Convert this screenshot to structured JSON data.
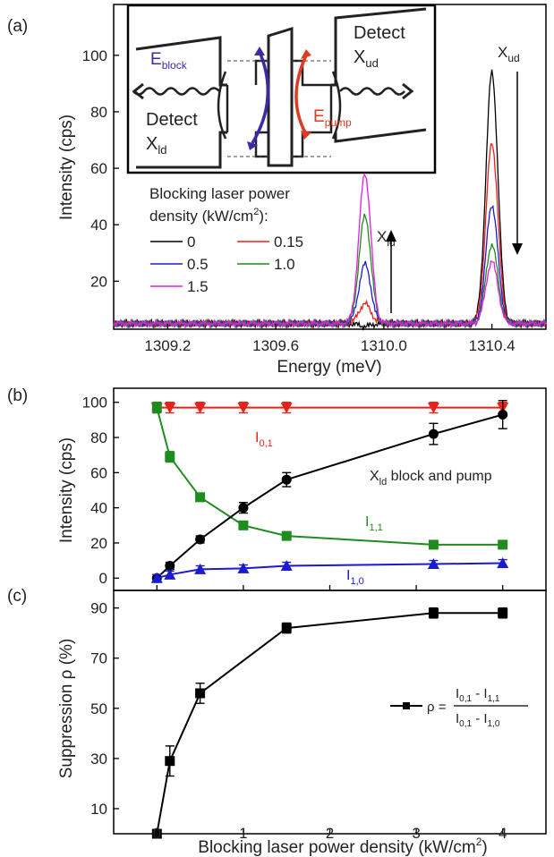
{
  "chart_data": [
    {
      "panel": "(a)",
      "type": "line",
      "xlabel": "Energy (meV)",
      "ylabel": "Intensity (cps)",
      "xlim": [
        1309.0,
        1310.6
      ],
      "ylim": [
        3,
        118
      ],
      "xticks": [
        {
          "value": 1309.2,
          "label": "1309.2"
        },
        {
          "value": 1309.6,
          "label": "1309.6"
        },
        {
          "value": 1310.0,
          "label": "1310.0"
        },
        {
          "value": 1310.4,
          "label": "1310.4"
        }
      ],
      "yticks": [
        20,
        40,
        60,
        80,
        100
      ],
      "legend_title_line1": "Blocking laser power",
      "legend_title_line2": "density (kW/cm",
      "legend_title_sup": "2",
      "legend_title_end": "):",
      "series": [
        {
          "name": "0",
          "color": "#000000",
          "peak_xld": 4,
          "peak_xud": 94
        },
        {
          "name": "0.15",
          "color": "#e8211b",
          "peak_xld": 12,
          "peak_xud": 69
        },
        {
          "name": "0.5",
          "color": "#1a1ad0",
          "peak_xld": 26,
          "peak_xud": 47
        },
        {
          "name": "1.0",
          "color": "#1e8c1e",
          "peak_xld": 43,
          "peak_xud": 33
        },
        {
          "name": "1.5",
          "color": "#e21ce2",
          "peak_xld": 58,
          "peak_xud": 27
        }
      ],
      "peak_positions": {
        "xld": 1309.93,
        "xud": 1310.4
      },
      "baseline": 5,
      "annotations": {
        "xud_main": "X",
        "xud_sub": "ud",
        "xld_main": "X",
        "xld_sub": "ld"
      },
      "inset": {
        "detect_right_line1": "Detect",
        "detect_right_main": "X",
        "detect_right_sub": "ud",
        "detect_left_line1": "Detect",
        "detect_left_main": "X",
        "detect_left_sub": "ld",
        "eblock_main": "E",
        "eblock_sub": "block",
        "epump_main": "E",
        "epump_sub": "pump",
        "eblock_color": "#3b2aa8",
        "epump_color": "#e03a22"
      }
    },
    {
      "panel": "(b)",
      "type": "line",
      "xlabel": "",
      "ylabel": "Intensity (cps)",
      "xlim": [
        -0.5,
        4.5
      ],
      "ylim": [
        -7,
        108
      ],
      "yticks": [
        0,
        20,
        40,
        60,
        80,
        100
      ],
      "series": [
        {
          "name": "I_0,1",
          "color": "#e8211b",
          "marker": "tri-down",
          "x": [
            0,
            0.15,
            0.5,
            1.0,
            1.5,
            3.2,
            4.0
          ],
          "y": [
            97,
            97,
            97,
            97,
            97,
            97,
            97
          ],
          "err": [
            3,
            3,
            3,
            3,
            3,
            3,
            3
          ]
        },
        {
          "name": "I_1,1",
          "color": "#1e8c1e",
          "marker": "square",
          "x": [
            0,
            0.15,
            0.5,
            1.0,
            1.5,
            3.2,
            4.0
          ],
          "y": [
            97,
            69,
            46,
            30,
            24,
            19,
            19
          ],
          "err": [
            3,
            3,
            2,
            2,
            2,
            2,
            2
          ]
        },
        {
          "name": "X_ld block and pump",
          "color": "#000000",
          "marker": "circle",
          "x": [
            0,
            0.15,
            0.5,
            1.0,
            1.5,
            3.2,
            4.0
          ],
          "y": [
            0,
            7,
            22,
            40,
            56,
            82,
            93
          ],
          "err": [
            2,
            2,
            2,
            3,
            4,
            6,
            8
          ]
        },
        {
          "name": "I_1,0",
          "color": "#1a1ad0",
          "marker": "tri-up",
          "x": [
            0,
            0.15,
            0.5,
            1.0,
            1.5,
            3.2,
            4.0
          ],
          "y": [
            0,
            2,
            5,
            5.5,
            7,
            8,
            8.5
          ],
          "err": [
            2,
            2,
            2,
            2,
            2,
            2,
            2
          ]
        }
      ],
      "labels": {
        "i01_main": "I",
        "i01_sub": "0,1",
        "i11_main": "I",
        "i11_sub": "1,1",
        "i10_main": "I",
        "i10_sub": "1,0",
        "xld_main": "X",
        "xld_sub": "ld",
        "xld_rest": " block and pump"
      }
    },
    {
      "panel": "(c)",
      "type": "line",
      "xlabel": "Blocking laser power density (kW/cm",
      "xlabel_sup": "2",
      "xlabel_end": ")",
      "ylabel": "Suppression ρ (%)",
      "xlim": [
        -0.5,
        4.5
      ],
      "ylim": [
        0,
        97
      ],
      "xticks": [
        0,
        1,
        2,
        3,
        4
      ],
      "yticks": [
        10,
        30,
        50,
        70,
        90
      ],
      "series": [
        {
          "name": "ρ",
          "color": "#000000",
          "marker": "square",
          "x": [
            0,
            0.15,
            0.5,
            1.5,
            3.2,
            4.0
          ],
          "y": [
            0,
            29,
            56,
            82,
            88,
            88
          ],
          "err": [
            0,
            6,
            4,
            2,
            2,
            2
          ]
        }
      ],
      "legend": {
        "rho": "ρ =",
        "num_a": "I",
        "num_a_sub": "0,1",
        "num_minus": " - ",
        "num_b": "I",
        "num_b_sub": "1,1",
        "den_a": "I",
        "den_a_sub": "0,1",
        "den_minus": " - ",
        "den_b": "I",
        "den_b_sub": "1,0"
      }
    }
  ],
  "panel_labels": [
    "(a)",
    "(b)",
    "(c)"
  ]
}
